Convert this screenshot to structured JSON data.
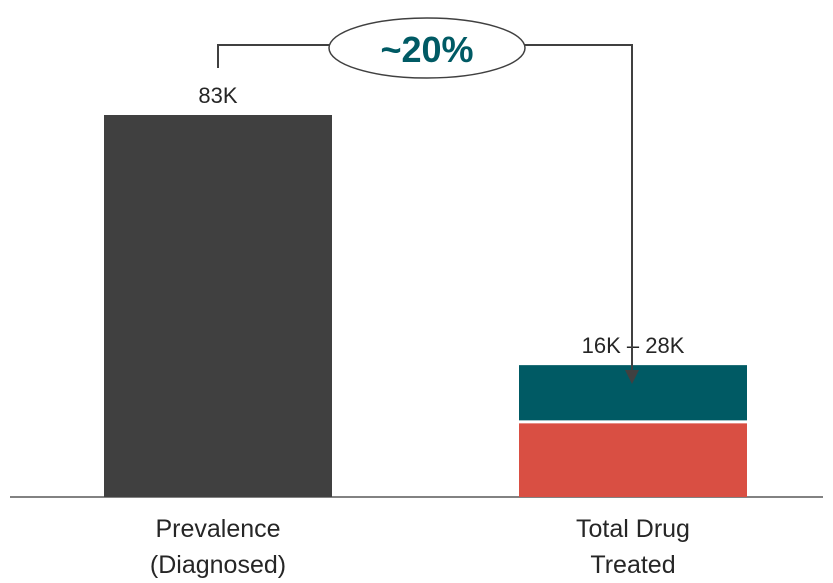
{
  "chart_data": {
    "type": "bar",
    "categories": [
      "Prevalence\n(Diagnosed)",
      "Total Drug\nTreated"
    ],
    "category_lines": [
      [
        "Prevalence",
        "(Diagnosed)"
      ],
      [
        "Total Drug",
        "Treated"
      ]
    ],
    "value_labels": [
      "83K",
      "16K – 28K"
    ],
    "bars": [
      {
        "category": "Prevalence (Diagnosed)",
        "segments": [
          {
            "value": 83,
            "color": "#404040"
          }
        ]
      },
      {
        "category": "Total Drug Treated",
        "segments": [
          {
            "value": 16,
            "color": "#d94f43"
          },
          {
            "value": 12,
            "color": "#005a64"
          }
        ]
      }
    ],
    "units": "K",
    "annotation": {
      "text": "~20%",
      "color": "#005a64"
    },
    "ylim": [
      0,
      83
    ],
    "title": "",
    "xlabel": "",
    "ylabel": "",
    "grid": false,
    "legend": "none"
  }
}
